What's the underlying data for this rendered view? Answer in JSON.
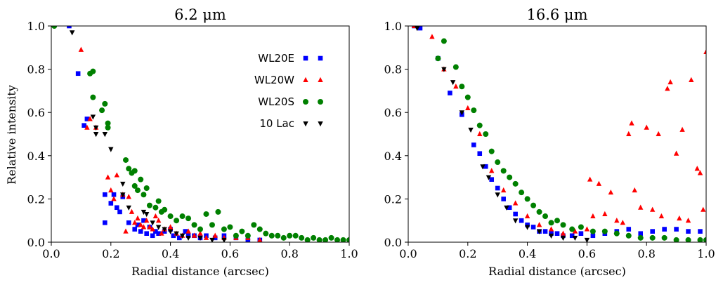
{
  "figure": {
    "ylabel": "Relative intensity"
  },
  "chart_data": [
    {
      "type": "scatter",
      "title": "6.2 μm",
      "xlabel": "Radial distance (arcsec)",
      "ylabel": "Relative intensity",
      "xlim": [
        0.0,
        1.0
      ],
      "ylim": [
        0.0,
        1.0
      ],
      "xticks": [
        "0.0",
        "0.2",
        "0.4",
        "0.6",
        "0.8",
        "1.0"
      ],
      "yticks": [
        "0.0",
        "0.2",
        "0.4",
        "0.6",
        "0.8",
        "1.0"
      ],
      "grid": false,
      "legend": "upper-right",
      "series": [
        {
          "name": "WL20E",
          "color": "#0000ff",
          "marker": "square",
          "x": [
            0.06,
            0.09,
            0.11,
            0.12,
            0.18,
            0.18,
            0.2,
            0.21,
            0.22,
            0.23,
            0.24,
            0.26,
            0.28,
            0.29,
            0.3,
            0.31,
            0.32,
            0.33,
            0.34,
            0.35,
            0.36,
            0.38,
            0.4,
            0.41,
            0.43,
            0.45,
            0.46,
            0.48,
            0.5,
            0.52,
            0.55,
            0.58,
            0.62,
            0.66,
            0.7
          ],
          "y": [
            1.0,
            0.78,
            0.54,
            0.57,
            0.22,
            0.09,
            0.18,
            0.22,
            0.16,
            0.14,
            0.21,
            0.09,
            0.06,
            0.08,
            0.05,
            0.1,
            0.04,
            0.07,
            0.03,
            0.05,
            0.04,
            0.05,
            0.06,
            0.03,
            0.02,
            0.05,
            0.03,
            0.03,
            0.02,
            0.03,
            0.02,
            0.03,
            0.02,
            0.01,
            0.01
          ]
        },
        {
          "name": "WL20W",
          "color": "#ff0000",
          "marker": "triangle-up",
          "x": [
            0.1,
            0.12,
            0.13,
            0.15,
            0.19,
            0.2,
            0.21,
            0.22,
            0.24,
            0.25,
            0.26,
            0.27,
            0.28,
            0.29,
            0.3,
            0.31,
            0.32,
            0.33,
            0.34,
            0.35,
            0.36,
            0.37,
            0.38,
            0.4,
            0.42,
            0.44,
            0.46,
            0.48,
            0.5,
            0.52,
            0.55,
            0.58,
            0.62,
            0.66,
            0.7
          ],
          "y": [
            0.89,
            0.53,
            0.57,
            0.53,
            0.3,
            0.24,
            0.2,
            0.31,
            0.22,
            0.05,
            0.21,
            0.14,
            0.09,
            0.11,
            0.08,
            0.07,
            0.1,
            0.07,
            0.06,
            0.12,
            0.1,
            0.04,
            0.06,
            0.07,
            0.04,
            0.03,
            0.05,
            0.03,
            0.04,
            0.02,
            0.03,
            0.02,
            0.02,
            0.02,
            0.01
          ]
        },
        {
          "name": "WL20S",
          "color": "#008000",
          "marker": "circle",
          "x": [
            0.01,
            0.13,
            0.14,
            0.14,
            0.17,
            0.18,
            0.19,
            0.19,
            0.25,
            0.26,
            0.27,
            0.28,
            0.28,
            0.29,
            0.3,
            0.31,
            0.32,
            0.33,
            0.35,
            0.36,
            0.37,
            0.38,
            0.4,
            0.42,
            0.44,
            0.46,
            0.48,
            0.5,
            0.52,
            0.54,
            0.56,
            0.58,
            0.6,
            0.62,
            0.64,
            0.66,
            0.68,
            0.7,
            0.72,
            0.74,
            0.76,
            0.78,
            0.8,
            0.82,
            0.84,
            0.86,
            0.88,
            0.9,
            0.92,
            0.94,
            0.96,
            0.98,
            1.0
          ],
          "y": [
            1.0,
            0.78,
            0.79,
            0.67,
            0.61,
            0.64,
            0.55,
            0.53,
            0.38,
            0.34,
            0.32,
            0.26,
            0.33,
            0.24,
            0.29,
            0.22,
            0.25,
            0.17,
            0.16,
            0.19,
            0.14,
            0.15,
            0.12,
            0.1,
            0.12,
            0.11,
            0.08,
            0.06,
            0.13,
            0.08,
            0.14,
            0.06,
            0.07,
            0.03,
            0.05,
            0.03,
            0.08,
            0.06,
            0.04,
            0.03,
            0.03,
            0.02,
            0.03,
            0.03,
            0.02,
            0.01,
            0.02,
            0.01,
            0.01,
            0.02,
            0.01,
            0.01,
            0.01
          ]
        },
        {
          "name": "10 Lac",
          "color": "#000000",
          "marker": "triangle-down",
          "x": [
            0.07,
            0.14,
            0.15,
            0.15,
            0.18,
            0.2,
            0.24,
            0.24,
            0.26,
            0.31,
            0.32,
            0.34,
            0.36,
            0.38,
            0.4,
            0.42,
            0.44,
            0.46,
            0.5,
            0.54,
            0.58
          ],
          "y": [
            0.97,
            0.58,
            0.5,
            0.53,
            0.5,
            0.43,
            0.27,
            0.22,
            0.16,
            0.14,
            0.13,
            0.09,
            0.07,
            0.06,
            0.05,
            0.04,
            0.03,
            0.02,
            0.02,
            0.01,
            0.01
          ]
        }
      ]
    },
    {
      "type": "scatter",
      "title": "16.6 μm",
      "xlabel": "Radial distance (arcsec)",
      "ylabel": "",
      "xlim": [
        0.0,
        1.0
      ],
      "ylim": [
        0.0,
        1.0
      ],
      "xticks": [
        "0.0",
        "0.2",
        "0.4",
        "0.6",
        "0.8",
        "1.0"
      ],
      "yticks": [
        "0.0",
        "0.2",
        "0.4",
        "0.6",
        "0.8",
        "1.0"
      ],
      "grid": false,
      "legend": "none",
      "series": [
        {
          "name": "WL20E",
          "color": "#0000ff",
          "marker": "square",
          "x": [
            0.02,
            0.04,
            0.1,
            0.14,
            0.18,
            0.22,
            0.24,
            0.26,
            0.28,
            0.3,
            0.32,
            0.34,
            0.36,
            0.38,
            0.4,
            0.42,
            0.44,
            0.46,
            0.48,
            0.5,
            0.52,
            0.55,
            0.58,
            0.62,
            0.66,
            0.7,
            0.74,
            0.78,
            0.82,
            0.86,
            0.9,
            0.94,
            0.98
          ],
          "y": [
            1.0,
            0.99,
            0.85,
            0.69,
            0.59,
            0.45,
            0.41,
            0.35,
            0.29,
            0.25,
            0.2,
            0.16,
            0.13,
            0.1,
            0.08,
            0.07,
            0.05,
            0.05,
            0.04,
            0.04,
            0.03,
            0.03,
            0.04,
            0.03,
            0.04,
            0.05,
            0.06,
            0.04,
            0.05,
            0.06,
            0.06,
            0.05,
            0.05
          ]
        },
        {
          "name": "WL20W",
          "color": "#ff0000",
          "marker": "triangle-up",
          "x": [
            0.02,
            0.08,
            0.12,
            0.16,
            0.2,
            0.24,
            0.28,
            0.32,
            0.36,
            0.4,
            0.44,
            0.48,
            0.52,
            0.56,
            0.6,
            0.61,
            0.62,
            0.64,
            0.66,
            0.68,
            0.7,
            0.72,
            0.74,
            0.75,
            0.76,
            0.78,
            0.8,
            0.82,
            0.84,
            0.85,
            0.87,
            0.88,
            0.9,
            0.91,
            0.92,
            0.94,
            0.95,
            0.97,
            0.98,
            0.99,
            1.0
          ],
          "y": [
            1.0,
            0.95,
            0.8,
            0.72,
            0.62,
            0.5,
            0.33,
            0.24,
            0.18,
            0.12,
            0.08,
            0.06,
            0.04,
            0.05,
            0.06,
            0.29,
            0.12,
            0.27,
            0.13,
            0.23,
            0.1,
            0.09,
            0.5,
            0.55,
            0.24,
            0.16,
            0.53,
            0.15,
            0.5,
            0.12,
            0.71,
            0.74,
            0.41,
            0.11,
            0.52,
            0.1,
            0.75,
            0.34,
            0.32,
            0.15,
            0.88
          ]
        },
        {
          "name": "WL20S",
          "color": "#008000",
          "marker": "circle",
          "x": [
            0.1,
            0.12,
            0.16,
            0.18,
            0.2,
            0.22,
            0.24,
            0.26,
            0.28,
            0.3,
            0.32,
            0.34,
            0.36,
            0.38,
            0.4,
            0.42,
            0.44,
            0.46,
            0.48,
            0.5,
            0.52,
            0.55,
            0.58,
            0.62,
            0.66,
            0.7,
            0.74,
            0.78,
            0.82,
            0.86,
            0.9,
            0.94,
            0.98,
            1.0
          ],
          "y": [
            0.85,
            0.93,
            0.81,
            0.72,
            0.67,
            0.61,
            0.54,
            0.5,
            0.42,
            0.37,
            0.33,
            0.3,
            0.27,
            0.23,
            0.2,
            0.17,
            0.14,
            0.12,
            0.09,
            0.1,
            0.08,
            0.06,
            0.07,
            0.05,
            0.05,
            0.04,
            0.03,
            0.02,
            0.02,
            0.02,
            0.01,
            0.01,
            0.01,
            0.01
          ]
        },
        {
          "name": "10 Lac",
          "color": "#000000",
          "marker": "triangle-down",
          "x": [
            0.03,
            0.12,
            0.15,
            0.18,
            0.21,
            0.25,
            0.27,
            0.3,
            0.33,
            0.36,
            0.4,
            0.44,
            0.48,
            0.52,
            0.56,
            0.6
          ],
          "y": [
            0.99,
            0.8,
            0.74,
            0.6,
            0.52,
            0.35,
            0.3,
            0.22,
            0.16,
            0.1,
            0.07,
            0.05,
            0.03,
            0.02,
            0.02,
            0.01
          ]
        }
      ]
    }
  ]
}
